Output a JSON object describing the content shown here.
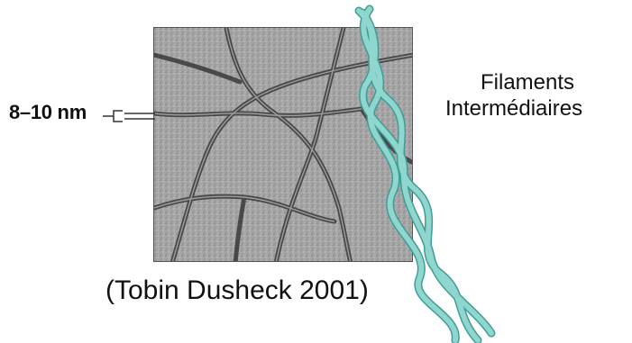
{
  "scale_label": "8–10 nm",
  "filament_label": {
    "line1": "Filaments",
    "line2": "Intermédiaires"
  },
  "citation": "(Tobin Dusheck 2001)",
  "colors": {
    "rope_fill": "#8fd6cf",
    "rope_stroke": "#3f9d96",
    "micrograph_bg": "#a9a9a9",
    "filament_dark": "#3a3a3a"
  }
}
